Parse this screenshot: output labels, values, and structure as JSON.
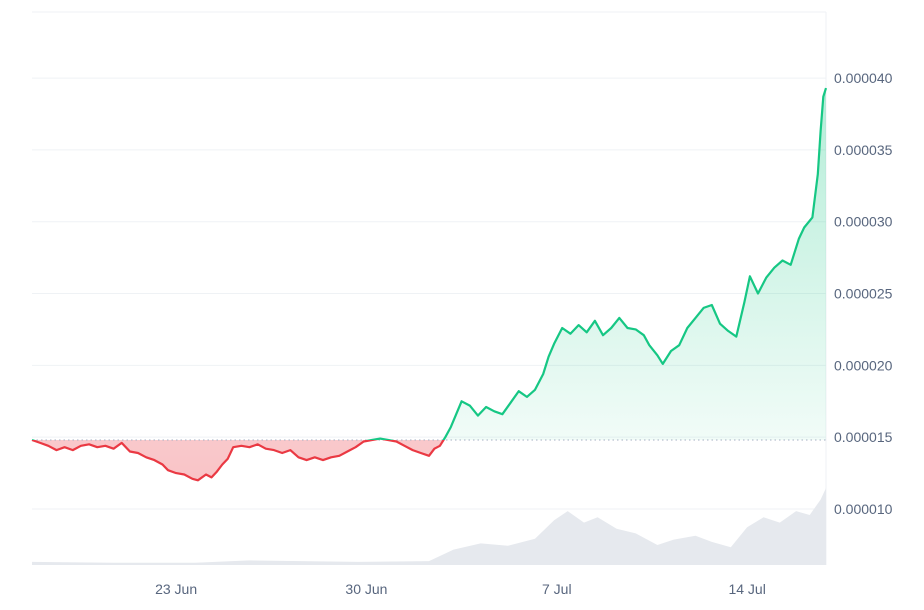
{
  "chart_data": {
    "type": "area",
    "baseline": 1.48e-05,
    "ylim": [
      6.1e-06,
      4.46e-05
    ],
    "y_ticks": [
      {
        "value": 1e-05,
        "label": "0.000010"
      },
      {
        "value": 1.5e-05,
        "label": "0.000015"
      },
      {
        "value": 2e-05,
        "label": "0.000020"
      },
      {
        "value": 2.5e-05,
        "label": "0.000025"
      },
      {
        "value": 3e-05,
        "label": "0.000030"
      },
      {
        "value": 3.5e-05,
        "label": "0.000035"
      },
      {
        "value": 4e-05,
        "label": "0.000040"
      }
    ],
    "x_ticks": [
      {
        "value": 5.3,
        "label": "23 Jun"
      },
      {
        "value": 12.3,
        "label": "30 Jun"
      },
      {
        "value": 19.3,
        "label": "7 Jul"
      },
      {
        "value": 26.3,
        "label": "14 Jul"
      }
    ],
    "x_range": [
      0,
      29.2
    ],
    "series": [
      {
        "points": [
          [
            0.0,
            1.48e-05
          ],
          [
            0.3,
            1.46e-05
          ],
          [
            0.6,
            1.44e-05
          ],
          [
            0.9,
            1.41e-05
          ],
          [
            1.2,
            1.43e-05
          ],
          [
            1.5,
            1.41e-05
          ],
          [
            1.8,
            1.44e-05
          ],
          [
            2.1,
            1.45e-05
          ],
          [
            2.4,
            1.43e-05
          ],
          [
            2.7,
            1.44e-05
          ],
          [
            3.0,
            1.42e-05
          ],
          [
            3.3,
            1.46e-05
          ],
          [
            3.6,
            1.4e-05
          ],
          [
            3.9,
            1.39e-05
          ],
          [
            4.2,
            1.36e-05
          ],
          [
            4.5,
            1.34e-05
          ],
          [
            4.8,
            1.31e-05
          ],
          [
            5.0,
            1.27e-05
          ],
          [
            5.3,
            1.25e-05
          ],
          [
            5.6,
            1.24e-05
          ],
          [
            5.9,
            1.21e-05
          ],
          [
            6.1,
            1.2e-05
          ],
          [
            6.4,
            1.24e-05
          ],
          [
            6.6,
            1.22e-05
          ],
          [
            6.8,
            1.26e-05
          ],
          [
            7.0,
            1.31e-05
          ],
          [
            7.2,
            1.35e-05
          ],
          [
            7.4,
            1.43e-05
          ],
          [
            7.7,
            1.44e-05
          ],
          [
            8.0,
            1.43e-05
          ],
          [
            8.3,
            1.45e-05
          ],
          [
            8.6,
            1.42e-05
          ],
          [
            8.9,
            1.41e-05
          ],
          [
            9.2,
            1.39e-05
          ],
          [
            9.5,
            1.41e-05
          ],
          [
            9.8,
            1.36e-05
          ],
          [
            10.1,
            1.34e-05
          ],
          [
            10.4,
            1.36e-05
          ],
          [
            10.7,
            1.34e-05
          ],
          [
            11.0,
            1.36e-05
          ],
          [
            11.3,
            1.37e-05
          ],
          [
            11.6,
            1.4e-05
          ],
          [
            11.9,
            1.43e-05
          ],
          [
            12.2,
            1.47e-05
          ],
          [
            12.5,
            1.48e-05
          ],
          [
            12.8,
            1.49e-05
          ],
          [
            13.1,
            1.48e-05
          ],
          [
            13.4,
            1.47e-05
          ],
          [
            13.7,
            1.44e-05
          ],
          [
            14.0,
            1.41e-05
          ],
          [
            14.3,
            1.39e-05
          ],
          [
            14.6,
            1.37e-05
          ],
          [
            14.8,
            1.42e-05
          ],
          [
            15.0,
            1.44e-05
          ],
          [
            15.2,
            1.5e-05
          ],
          [
            15.4,
            1.57e-05
          ],
          [
            15.6,
            1.66e-05
          ],
          [
            15.8,
            1.75e-05
          ],
          [
            16.1,
            1.72e-05
          ],
          [
            16.4,
            1.65e-05
          ],
          [
            16.7,
            1.71e-05
          ],
          [
            17.0,
            1.68e-05
          ],
          [
            17.3,
            1.66e-05
          ],
          [
            17.6,
            1.74e-05
          ],
          [
            17.9,
            1.82e-05
          ],
          [
            18.2,
            1.78e-05
          ],
          [
            18.5,
            1.83e-05
          ],
          [
            18.8,
            1.94e-05
          ],
          [
            19.0,
            2.06e-05
          ],
          [
            19.2,
            2.15e-05
          ],
          [
            19.5,
            2.26e-05
          ],
          [
            19.8,
            2.22e-05
          ],
          [
            20.1,
            2.28e-05
          ],
          [
            20.4,
            2.23e-05
          ],
          [
            20.7,
            2.31e-05
          ],
          [
            21.0,
            2.21e-05
          ],
          [
            21.3,
            2.26e-05
          ],
          [
            21.6,
            2.33e-05
          ],
          [
            21.9,
            2.26e-05
          ],
          [
            22.2,
            2.25e-05
          ],
          [
            22.5,
            2.21e-05
          ],
          [
            22.7,
            2.14e-05
          ],
          [
            23.0,
            2.07e-05
          ],
          [
            23.2,
            2.01e-05
          ],
          [
            23.5,
            2.1e-05
          ],
          [
            23.8,
            2.14e-05
          ],
          [
            24.1,
            2.26e-05
          ],
          [
            24.4,
            2.33e-05
          ],
          [
            24.7,
            2.4e-05
          ],
          [
            25.0,
            2.42e-05
          ],
          [
            25.3,
            2.29e-05
          ],
          [
            25.6,
            2.24e-05
          ],
          [
            25.9,
            2.2e-05
          ],
          [
            26.2,
            2.44e-05
          ],
          [
            26.4,
            2.62e-05
          ],
          [
            26.7,
            2.5e-05
          ],
          [
            27.0,
            2.61e-05
          ],
          [
            27.3,
            2.68e-05
          ],
          [
            27.6,
            2.73e-05
          ],
          [
            27.9,
            2.7e-05
          ],
          [
            28.2,
            2.88e-05
          ],
          [
            28.4,
            2.96e-05
          ],
          [
            28.7,
            3.03e-05
          ],
          [
            28.9,
            3.33e-05
          ],
          [
            29.0,
            3.63e-05
          ],
          [
            29.1,
            3.87e-05
          ],
          [
            29.2,
            3.93e-05
          ]
        ]
      }
    ],
    "volume": [
      [
        0.0,
        0.04
      ],
      [
        3.0,
        0.03
      ],
      [
        6.0,
        0.03
      ],
      [
        8.0,
        0.06
      ],
      [
        12.0,
        0.04
      ],
      [
        14.6,
        0.05
      ],
      [
        15.5,
        0.2
      ],
      [
        16.5,
        0.28
      ],
      [
        17.5,
        0.25
      ],
      [
        18.5,
        0.34
      ],
      [
        19.2,
        0.58
      ],
      [
        19.7,
        0.7
      ],
      [
        20.3,
        0.55
      ],
      [
        20.8,
        0.62
      ],
      [
        21.5,
        0.47
      ],
      [
        22.2,
        0.41
      ],
      [
        23.0,
        0.26
      ],
      [
        23.6,
        0.33
      ],
      [
        24.4,
        0.38
      ],
      [
        25.0,
        0.3
      ],
      [
        25.7,
        0.23
      ],
      [
        26.3,
        0.49
      ],
      [
        26.9,
        0.62
      ],
      [
        27.5,
        0.55
      ],
      [
        28.1,
        0.7
      ],
      [
        28.6,
        0.65
      ],
      [
        29.0,
        0.85
      ],
      [
        29.2,
        1.0
      ]
    ],
    "colors": {
      "up_line": "#16c784",
      "down_line": "#ea3943",
      "up_fill": "#16c784",
      "down_fill": "#ea3943",
      "volume_fill": "#e6e9ee",
      "grid": "#eff2f5",
      "baseline": "#a6b0c3",
      "tick_text": "#58667e"
    }
  }
}
